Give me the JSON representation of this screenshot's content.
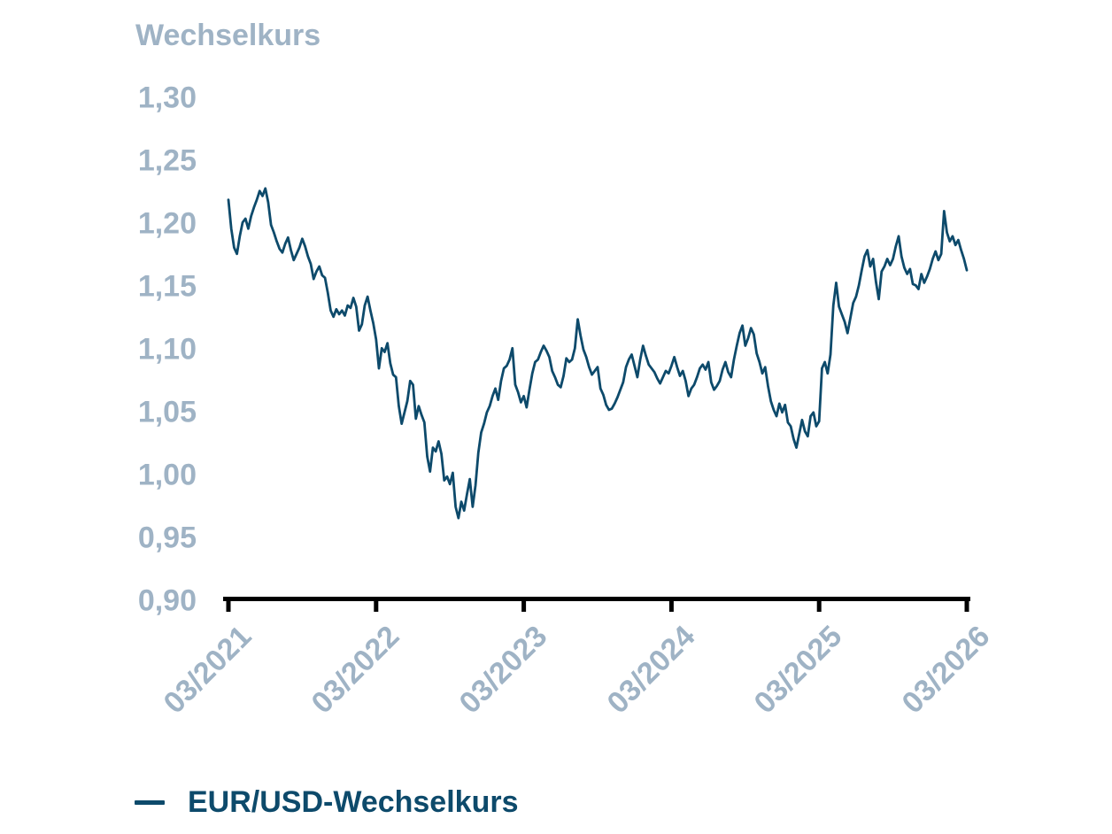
{
  "title": "Wechselkurs",
  "legend": {
    "label": "EUR/USD-Wechselkurs"
  },
  "colors": {
    "line": "#0d4a6b",
    "labels": "#9fb3c5",
    "axis": "#000000",
    "background": "#ffffff"
  },
  "chart_data": {
    "type": "line",
    "title": "Wechselkurs",
    "series_name": "EUR/USD-Wechselkurs",
    "x_tick_labels": [
      "03/2021",
      "03/2022",
      "03/2023",
      "03/2024",
      "03/2025",
      "03/2026"
    ],
    "y_tick_labels": [
      "1,30",
      "1,25",
      "1,20",
      "1,15",
      "1,10",
      "1,05",
      "1,00",
      "0,95",
      "0,90"
    ],
    "y_tick_values": [
      1.3,
      1.25,
      1.2,
      1.15,
      1.1,
      1.05,
      1.0,
      0.95,
      0.9
    ],
    "ylim": [
      0.9,
      1.3
    ],
    "grid": false,
    "legend_position": "bottom-left",
    "start": "2021-03",
    "end": "2026-03",
    "frequency": "weekly",
    "values": [
      1.219,
      1.196,
      1.181,
      1.176,
      1.19,
      1.201,
      1.204,
      1.196,
      1.206,
      1.213,
      1.219,
      1.226,
      1.222,
      1.228,
      1.217,
      1.199,
      1.193,
      1.186,
      1.18,
      1.177,
      1.184,
      1.189,
      1.179,
      1.171,
      1.176,
      1.181,
      1.188,
      1.182,
      1.174,
      1.168,
      1.156,
      1.162,
      1.166,
      1.159,
      1.157,
      1.145,
      1.131,
      1.126,
      1.132,
      1.128,
      1.131,
      1.127,
      1.135,
      1.133,
      1.141,
      1.134,
      1.115,
      1.12,
      1.135,
      1.142,
      1.131,
      1.121,
      1.108,
      1.085,
      1.101,
      1.098,
      1.105,
      1.089,
      1.08,
      1.078,
      1.055,
      1.041,
      1.05,
      1.059,
      1.075,
      1.072,
      1.045,
      1.055,
      1.048,
      1.042,
      1.015,
      1.003,
      1.022,
      1.019,
      1.027,
      1.017,
      0.996,
      0.999,
      0.993,
      1.002,
      0.975,
      0.966,
      0.979,
      0.972,
      0.985,
      0.997,
      0.975,
      0.992,
      1.018,
      1.034,
      1.041,
      1.05,
      1.055,
      1.063,
      1.069,
      1.06,
      1.075,
      1.085,
      1.087,
      1.092,
      1.101,
      1.072,
      1.066,
      1.058,
      1.063,
      1.054,
      1.068,
      1.081,
      1.09,
      1.092,
      1.098,
      1.103,
      1.099,
      1.094,
      1.083,
      1.078,
      1.072,
      1.07,
      1.079,
      1.093,
      1.09,
      1.092,
      1.101,
      1.124,
      1.111,
      1.1,
      1.094,
      1.086,
      1.08,
      1.083,
      1.086,
      1.069,
      1.064,
      1.056,
      1.052,
      1.053,
      1.057,
      1.062,
      1.068,
      1.074,
      1.086,
      1.092,
      1.096,
      1.087,
      1.078,
      1.092,
      1.103,
      1.095,
      1.088,
      1.085,
      1.082,
      1.077,
      1.073,
      1.078,
      1.083,
      1.081,
      1.087,
      1.094,
      1.086,
      1.079,
      1.083,
      1.075,
      1.063,
      1.069,
      1.072,
      1.078,
      1.085,
      1.088,
      1.084,
      1.09,
      1.074,
      1.068,
      1.071,
      1.075,
      1.084,
      1.09,
      1.082,
      1.078,
      1.092,
      1.103,
      1.113,
      1.119,
      1.103,
      1.109,
      1.117,
      1.112,
      1.097,
      1.09,
      1.081,
      1.086,
      1.071,
      1.059,
      1.052,
      1.047,
      1.057,
      1.05,
      1.056,
      1.042,
      1.039,
      1.029,
      1.022,
      1.033,
      1.044,
      1.035,
      1.031,
      1.047,
      1.05,
      1.039,
      1.043,
      1.085,
      1.09,
      1.081,
      1.096,
      1.135,
      1.153,
      1.134,
      1.128,
      1.122,
      1.113,
      1.125,
      1.137,
      1.142,
      1.151,
      1.163,
      1.174,
      1.179,
      1.166,
      1.172,
      1.154,
      1.14,
      1.162,
      1.166,
      1.172,
      1.167,
      1.172,
      1.182,
      1.19,
      1.174,
      1.165,
      1.16,
      1.164,
      1.152,
      1.151,
      1.148,
      1.16,
      1.153,
      1.158,
      1.164,
      1.172,
      1.178,
      1.171,
      1.176,
      1.21,
      1.193,
      1.186,
      1.19,
      1.183,
      1.187,
      1.179,
      1.172,
      1.163
    ]
  }
}
